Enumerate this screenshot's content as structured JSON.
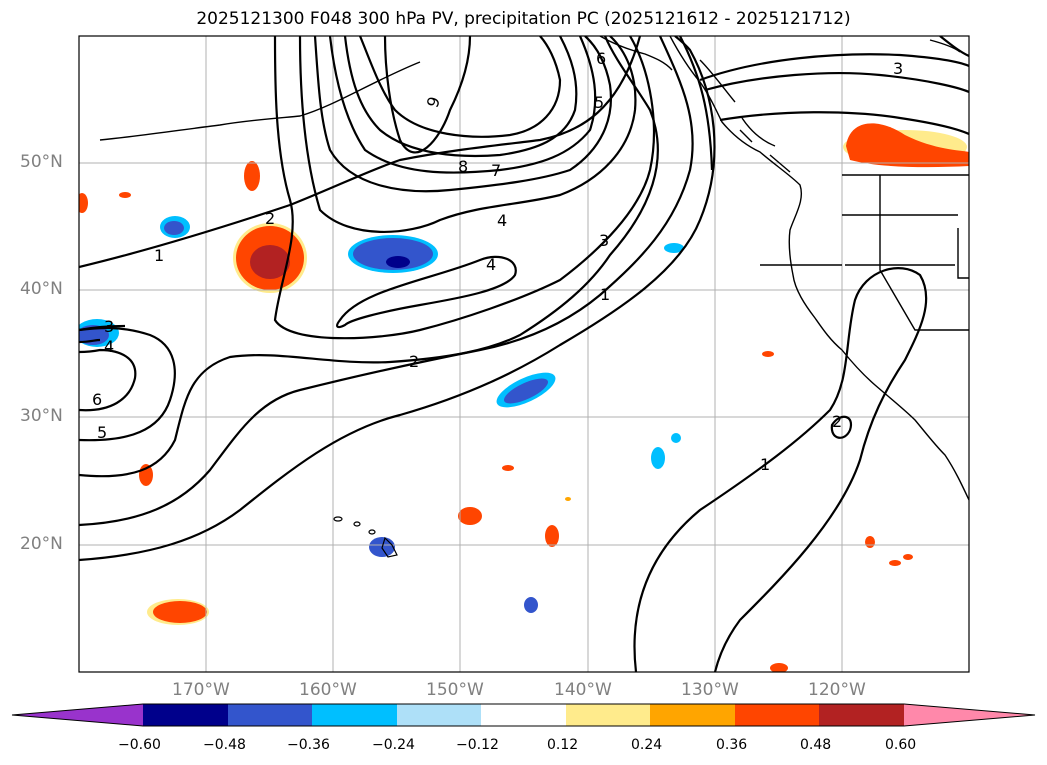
{
  "title": "2025121300 F048 300 hPa PV, precipitation PC (2025121612 - 2025121712)",
  "lat_labels": [
    "50°N",
    "40°N",
    "30°N",
    "20°N"
  ],
  "lon_labels": [
    "170°W",
    "160°W",
    "150°W",
    "140°W",
    "130°W",
    "120°W"
  ],
  "contour_labels": [
    "9",
    "8",
    "7",
    "6",
    "5",
    "4",
    "4",
    "3",
    "3",
    "2",
    "2",
    "2",
    "1",
    "1",
    "1",
    "3",
    "4",
    "6",
    "5"
  ],
  "colorbar": {
    "ticks": [
      "−0.60",
      "−0.48",
      "−0.36",
      "−0.24",
      "−0.12",
      "0.12",
      "0.24",
      "0.36",
      "0.48",
      "0.60"
    ],
    "colors": [
      "#9933cc",
      "#00008b",
      "#3355cc",
      "#00bfff",
      "#aee0f8",
      "#ffffff",
      "#ffeb8c",
      "#ffa500",
      "#ff4500",
      "#b22222",
      "#ff88aa"
    ]
  },
  "colors": {
    "grid": "#b0b0b0",
    "contour": "#000000",
    "coast": "#000000"
  }
}
